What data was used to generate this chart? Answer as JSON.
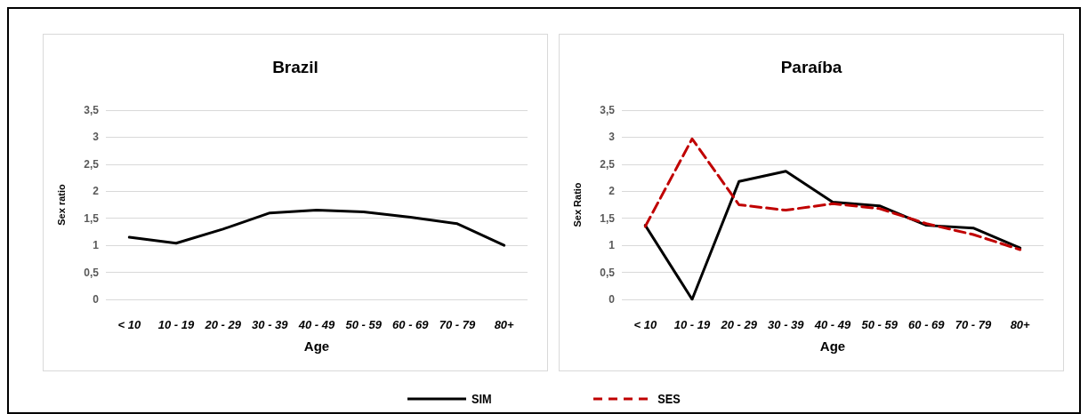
{
  "chart_data": [
    {
      "type": "line",
      "title": "Brazil",
      "xlabel": "Age",
      "ylabel": "Sex ratio",
      "categories": [
        "< 10",
        "10 - 19",
        "20 - 29",
        "30 - 39",
        "40 - 49",
        "50 - 59",
        "60 - 69",
        "70 - 79",
        "80+"
      ],
      "series": [
        {
          "name": "SIM",
          "color": "#000000",
          "line_style": "solid",
          "values": [
            1.15,
            1.04,
            1.3,
            1.6,
            1.65,
            1.62,
            1.52,
            1.4,
            1.0
          ]
        }
      ],
      "ylim": [
        0,
        3.5
      ],
      "yticks": [
        0,
        {
          "value": 0.5,
          "label": "0,5"
        },
        1,
        {
          "value": 1.5,
          "label": "1,5"
        },
        2,
        {
          "value": 2.5,
          "label": "2,5"
        },
        3,
        {
          "value": 3.5,
          "label": "3,5"
        }
      ],
      "grid": "y",
      "marker": "none",
      "legend": "bottom"
    },
    {
      "type": "line",
      "title": "Paraíba",
      "xlabel": "Age",
      "ylabel": "Sex Ratio",
      "categories": [
        "< 10",
        "10 - 19",
        "20 - 29",
        "30 - 39",
        "40 - 49",
        "50 - 59",
        "60 - 69",
        "70 - 79",
        "80+"
      ],
      "series": [
        {
          "name": "SIM",
          "color": "#000000",
          "line_style": "solid",
          "values": [
            1.37,
            0,
            2.18,
            2.37,
            1.8,
            1.73,
            1.37,
            1.32,
            0.95
          ]
        },
        {
          "name": "SES",
          "color": "#c00000",
          "line_style": "dashed",
          "values": [
            1.35,
            2.97,
            1.75,
            1.65,
            1.77,
            1.68,
            1.4,
            1.2,
            0.92
          ]
        }
      ],
      "ylim": [
        0,
        3.5
      ],
      "yticks": [
        0,
        {
          "value": 0.5,
          "label": "0,5"
        },
        1,
        {
          "value": 1.5,
          "label": "1,5"
        },
        2,
        {
          "value": 2.5,
          "label": "2,5"
        },
        3,
        {
          "value": 3.5,
          "label": "3,5"
        }
      ],
      "grid": "y",
      "marker": "none",
      "legend": "bottom"
    }
  ]
}
